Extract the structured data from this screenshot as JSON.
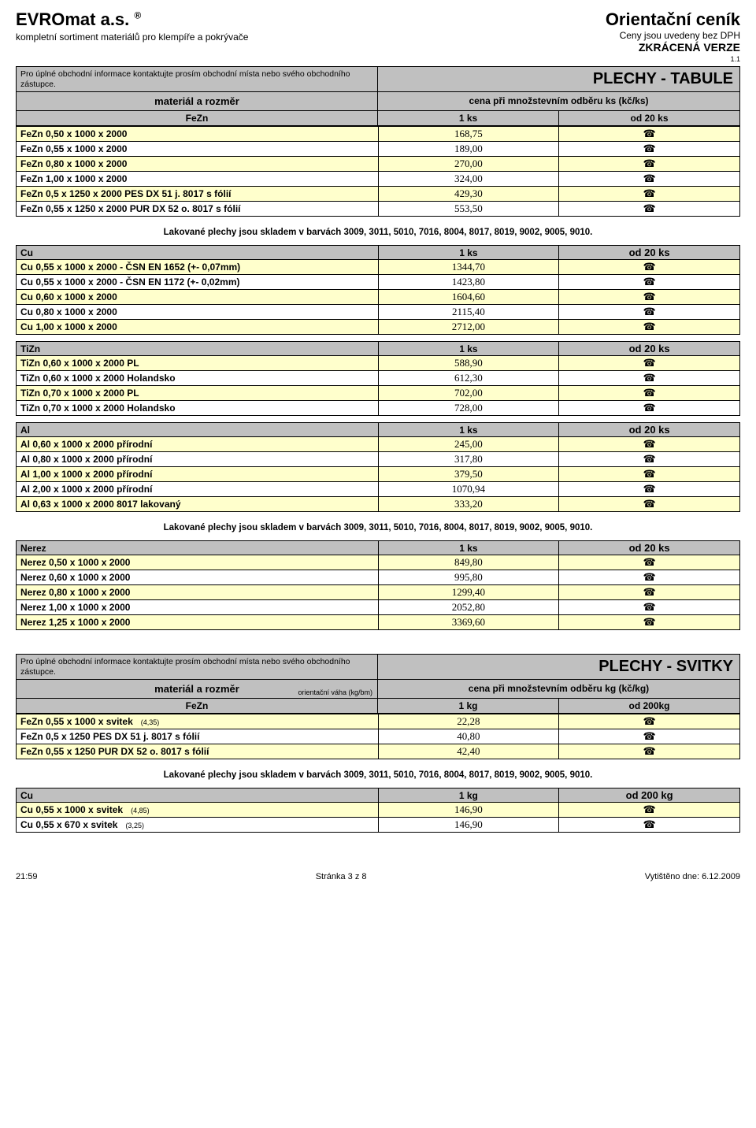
{
  "header": {
    "company": "EVROmat a.s.",
    "reg": "®",
    "subtitle": "kompletní sortiment materiálů pro klempíře a pokrývače",
    "orientacni": "Orientační ceník",
    "ceny_bez": "Ceny jsou uvedeny bez DPH",
    "zkracena": "ZKRÁCENÁ VERZE",
    "version": "1.1"
  },
  "contact_text": "Pro úplné obchodní informace kontaktujte prosím obchodní místa nebo svého obchodního zástupce.",
  "section1_title": "PLECHY - TABULE",
  "material_label": "materiál a rozměr",
  "cena_label": "cena při množstevním odběru ks (kč/ks)",
  "col_1ks": "1 ks",
  "col_20ks": "od 20 ks",
  "phone_icon": "☎",
  "fezn_label": "FeZn",
  "fezn_rows": [
    {
      "desc": "FeZn 0,50 x 1000 x 2000",
      "price": "168,75"
    },
    {
      "desc": "FeZn 0,55 x 1000 x 2000",
      "price": "189,00"
    },
    {
      "desc": "FeZn 0,80 x 1000 x 2000",
      "price": "270,00"
    },
    {
      "desc": "FeZn 1,00 x 1000 x 2000",
      "price": "324,00"
    },
    {
      "desc": "FeZn 0,5 x 1250 x 2000 PES DX 51 j. 8017 s fólií",
      "price": "429,30"
    },
    {
      "desc": "FeZn 0,55 x 1250 x 2000 PUR DX 52 o. 8017 s fólií",
      "price": "553,50"
    }
  ],
  "lakovane_note": "Lakované plechy jsou skladem v barvách 3009, 3011, 5010, 7016, 8004, 8017, 8019, 9002, 9005, 9010.",
  "cu_label": "Cu",
  "cu_rows": [
    {
      "desc": "Cu 0,55 x 1000 x 2000 - ČSN EN 1652 (+- 0,07mm)",
      "price": "1344,70"
    },
    {
      "desc": "Cu 0,55 x 1000 x 2000 - ČSN EN 1172 (+- 0,02mm)",
      "price": "1423,80"
    },
    {
      "desc": "Cu 0,60 x 1000 x 2000",
      "price": "1604,60"
    },
    {
      "desc": "Cu 0,80 x 1000 x 2000",
      "price": "2115,40"
    },
    {
      "desc": "Cu 1,00 x 1000 x 2000",
      "price": "2712,00"
    }
  ],
  "tizn_label": "TiZn",
  "tizn_rows": [
    {
      "desc": "TiZn 0,60 x 1000 x 2000  PL",
      "price": "588,90"
    },
    {
      "desc": "TiZn 0,60 x 1000 x 2000  Holandsko",
      "price": "612,30"
    },
    {
      "desc": "TiZn 0,70 x 1000 x 2000  PL",
      "price": "702,00"
    },
    {
      "desc": "TiZn 0,70 x 1000 x 2000  Holandsko",
      "price": "728,00"
    }
  ],
  "al_label": "Al",
  "al_rows": [
    {
      "desc": "Al 0,60 x 1000 x 2000  přírodní",
      "price": "245,00"
    },
    {
      "desc": "Al 0,80 x 1000 x 2000  přírodní",
      "price": "317,80"
    },
    {
      "desc": "Al 1,00 x 1000 x 2000  přírodní",
      "price": "379,50"
    },
    {
      "desc": "Al 2,00 x 1000 x 2000  přírodní",
      "price": "1070,94"
    },
    {
      "desc": "Al 0,63 x 1000 x 2000  8017 lakovaný",
      "price": "333,20"
    }
  ],
  "nerez_label": "Nerez",
  "nerez_rows": [
    {
      "desc": "Nerez 0,50 x 1000 x 2000",
      "price": "849,80"
    },
    {
      "desc": "Nerez 0,60 x 1000 x 2000",
      "price": "995,80"
    },
    {
      "desc": "Nerez 0,80 x 1000 x 2000",
      "price": "1299,40"
    },
    {
      "desc": "Nerez 1,00 x 1000 x 2000",
      "price": "2052,80"
    },
    {
      "desc": "Nerez 1,25 x 1000 x 2000",
      "price": "3369,60"
    }
  ],
  "section2_title": "PLECHY - SVITKY",
  "cena_label_kg": "cena při množstevním odběru kg (kč/kg)",
  "col_1kg": "1 kg",
  "col_200kg": "od 200kg",
  "col_200kg_b": "od 200 kg",
  "waha_note": "orientační váha (kg/bm)",
  "svitky_fezn_rows": [
    {
      "desc": "FeZn 0,55 x 1000 x svitek",
      "paren": "(4,35)",
      "price": "22,28"
    },
    {
      "desc": "FeZn 0,5 x 1250 PES DX 51 j. 8017 s fólií",
      "paren": "",
      "price": "40,80"
    },
    {
      "desc": "FeZn 0,55 x 1250 PUR DX 52 o. 8017 s fólií",
      "paren": "",
      "price": "42,40"
    }
  ],
  "svitky_cu_rows": [
    {
      "desc": "Cu 0,55 x 1000 x svitek",
      "paren": "(4,85)",
      "price": "146,90"
    },
    {
      "desc": "Cu 0,55 x 670 x svitek",
      "paren": "(3,25)",
      "price": "146,90"
    }
  ],
  "footer": {
    "time": "21:59",
    "page": "Stránka 3 z 8",
    "printed": "Vytištěno dne:  6.12.2009"
  }
}
